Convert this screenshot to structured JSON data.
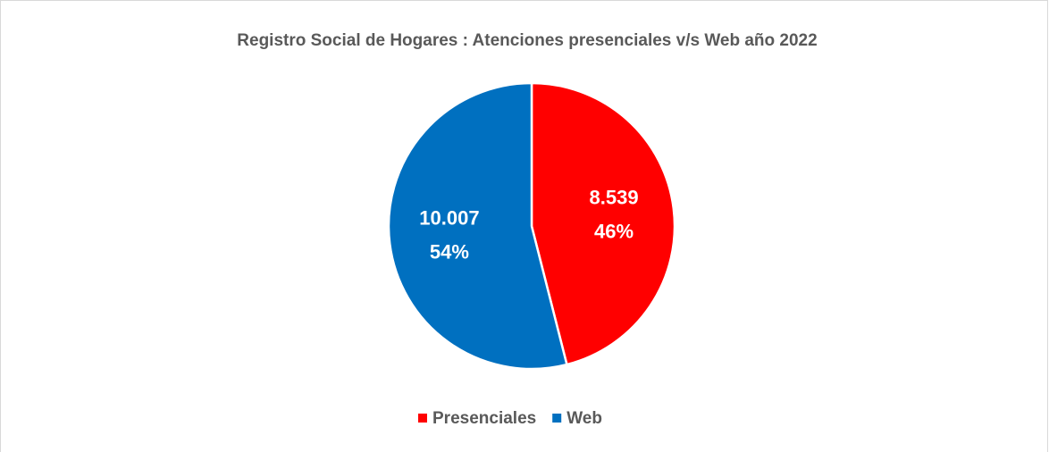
{
  "chart_data": {
    "type": "pie",
    "title": "Registro Social de Hogares : Atenciones presenciales v/s Web año 2022",
    "categories": [
      "Presenciales",
      "Web"
    ],
    "values": [
      8539,
      10007
    ],
    "value_labels": [
      "8.539",
      "10.007"
    ],
    "percents": [
      46,
      54
    ],
    "percent_labels": [
      "46%",
      "54%"
    ],
    "colors": [
      "#ff0000",
      "#0070c0"
    ],
    "legend": "bottom"
  }
}
